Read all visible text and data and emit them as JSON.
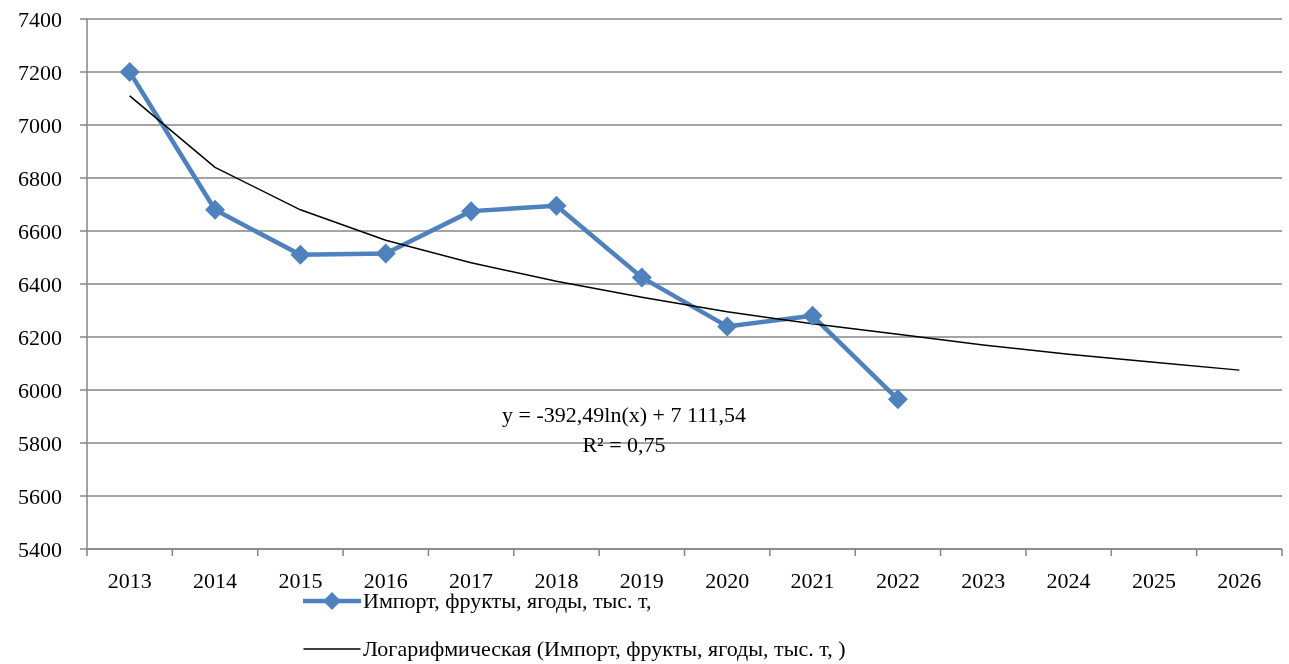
{
  "chart_data": {
    "type": "line",
    "categories": [
      "2013",
      "2014",
      "2015",
      "2016",
      "2017",
      "2018",
      "2019",
      "2020",
      "2021",
      "2022",
      "2023",
      "2024",
      "2025",
      "2026"
    ],
    "series": [
      {
        "name": "Импорт, фрукты, ягоды, тыс. т,",
        "color": "#4f81bd",
        "marker": "diamond",
        "values": [
          7200,
          6680,
          6510,
          6515,
          6675,
          6695,
          6425,
          6240,
          6280,
          5965,
          null,
          null,
          null,
          null
        ]
      },
      {
        "name": "Логарифмическая (Импорт, фрукты, ягоды, тыс. т, )",
        "color": "#000000",
        "marker": "none",
        "values": [
          7110,
          6840,
          6680,
          6565,
          6480,
          6410,
          6350,
          6295,
          6250,
          6210,
          6170,
          6135,
          6105,
          6075
        ]
      }
    ],
    "ylim": [
      5400,
      7400
    ],
    "yticks": [
      5400,
      5600,
      5800,
      6000,
      6200,
      6400,
      6600,
      6800,
      7000,
      7200,
      7400
    ],
    "grid": "y",
    "legend": "bottom",
    "annotations": [
      "y = -392,49ln(x) + 7 111,54",
      "R² = 0,75"
    ]
  }
}
